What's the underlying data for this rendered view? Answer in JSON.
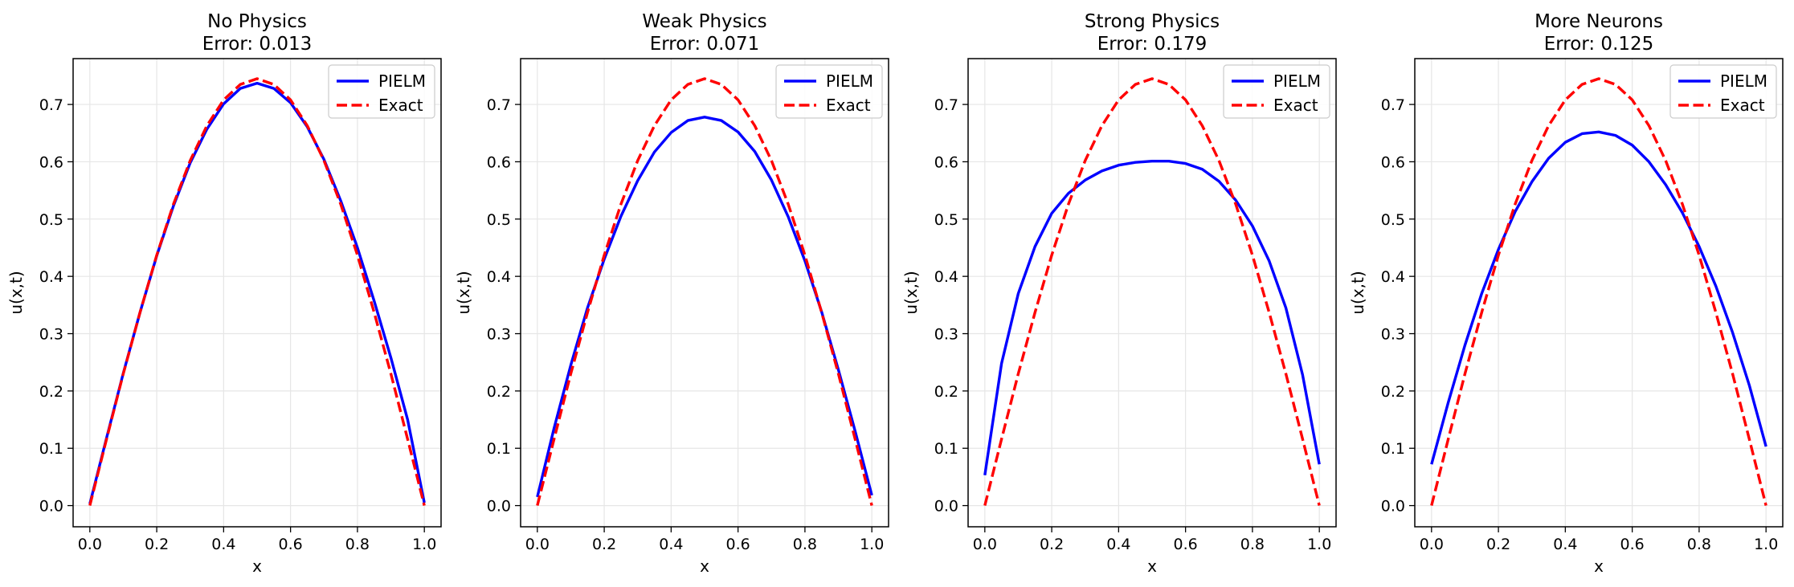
{
  "colors": {
    "pielm": "#0000ff",
    "exact": "#ff0000",
    "grid": "#e6e6e6",
    "axes": "#000000"
  },
  "chart_data": [
    {
      "type": "line",
      "title": "No Physics",
      "subtitle": "Error: 0.013",
      "xlabel": "x",
      "ylabel": "u(x,t)",
      "xlim": [
        -0.05,
        1.05
      ],
      "ylim": [
        -0.037,
        0.78
      ],
      "xticks": [
        0.0,
        0.2,
        0.4,
        0.6,
        0.8,
        1.0
      ],
      "xtick_labels": [
        "0.0",
        "0.2",
        "0.4",
        "0.6",
        "0.8",
        "1.0"
      ],
      "yticks": [
        0.0,
        0.1,
        0.2,
        0.3,
        0.4,
        0.5,
        0.6,
        0.7
      ],
      "ytick_labels": [
        "0.0",
        "0.1",
        "0.2",
        "0.3",
        "0.4",
        "0.5",
        "0.6",
        "0.7"
      ],
      "grid": true,
      "legend": "top-right",
      "series": [
        {
          "name": "PIELM",
          "style": "solid",
          "color": "#0000ff",
          "x": [
            0.0,
            0.05,
            0.1,
            0.15,
            0.2,
            0.25,
            0.3,
            0.35,
            0.4,
            0.45,
            0.5,
            0.55,
            0.6,
            0.65,
            0.7,
            0.75,
            0.8,
            0.85,
            0.9,
            0.95,
            1.0
          ],
          "y": [
            0.003,
            0.118,
            0.231,
            0.337,
            0.436,
            0.523,
            0.598,
            0.657,
            0.701,
            0.728,
            0.737,
            0.728,
            0.703,
            0.661,
            0.604,
            0.532,
            0.45,
            0.357,
            0.258,
            0.15,
            0.005
          ]
        },
        {
          "name": "Exact",
          "style": "dashed",
          "color": "#ff0000",
          "x": [
            0.0,
            0.05,
            0.1,
            0.15,
            0.2,
            0.25,
            0.3,
            0.35,
            0.4,
            0.45,
            0.5,
            0.55,
            0.6,
            0.65,
            0.7,
            0.75,
            0.8,
            0.85,
            0.9,
            0.95,
            1.0
          ],
          "y": [
            0.0,
            0.116,
            0.23,
            0.337,
            0.437,
            0.526,
            0.602,
            0.663,
            0.708,
            0.735,
            0.745,
            0.735,
            0.708,
            0.663,
            0.602,
            0.526,
            0.437,
            0.337,
            0.23,
            0.116,
            0.0
          ]
        }
      ]
    },
    {
      "type": "line",
      "title": "Weak Physics",
      "subtitle": "Error: 0.071",
      "xlabel": "x",
      "ylabel": "u(x,t)",
      "xlim": [
        -0.05,
        1.05
      ],
      "ylim": [
        -0.037,
        0.78
      ],
      "xticks": [
        0.0,
        0.2,
        0.4,
        0.6,
        0.8,
        1.0
      ],
      "xtick_labels": [
        "0.0",
        "0.2",
        "0.4",
        "0.6",
        "0.8",
        "1.0"
      ],
      "yticks": [
        0.0,
        0.1,
        0.2,
        0.3,
        0.4,
        0.5,
        0.6,
        0.7
      ],
      "ytick_labels": [
        "0.0",
        "0.1",
        "0.2",
        "0.3",
        "0.4",
        "0.5",
        "0.6",
        "0.7"
      ],
      "grid": true,
      "legend": "top-right",
      "series": [
        {
          "name": "PIELM",
          "style": "solid",
          "color": "#0000ff",
          "x": [
            0.0,
            0.05,
            0.1,
            0.15,
            0.2,
            0.25,
            0.3,
            0.35,
            0.4,
            0.45,
            0.5,
            0.55,
            0.6,
            0.65,
            0.7,
            0.75,
            0.8,
            0.85,
            0.9,
            0.95,
            1.0
          ],
          "y": [
            0.015,
            0.135,
            0.245,
            0.345,
            0.43,
            0.505,
            0.567,
            0.617,
            0.651,
            0.672,
            0.678,
            0.672,
            0.652,
            0.618,
            0.568,
            0.504,
            0.427,
            0.338,
            0.237,
            0.13,
            0.018
          ]
        },
        {
          "name": "Exact",
          "style": "dashed",
          "color": "#ff0000",
          "x": [
            0.0,
            0.05,
            0.1,
            0.15,
            0.2,
            0.25,
            0.3,
            0.35,
            0.4,
            0.45,
            0.5,
            0.55,
            0.6,
            0.65,
            0.7,
            0.75,
            0.8,
            0.85,
            0.9,
            0.95,
            1.0
          ],
          "y": [
            0.0,
            0.116,
            0.23,
            0.337,
            0.437,
            0.526,
            0.602,
            0.663,
            0.708,
            0.735,
            0.745,
            0.735,
            0.708,
            0.663,
            0.602,
            0.526,
            0.437,
            0.337,
            0.23,
            0.116,
            0.0
          ]
        }
      ]
    },
    {
      "type": "line",
      "title": "Strong Physics",
      "subtitle": "Error: 0.179",
      "xlabel": "x",
      "ylabel": "u(x,t)",
      "xlim": [
        -0.05,
        1.05
      ],
      "ylim": [
        -0.037,
        0.78
      ],
      "xticks": [
        0.0,
        0.2,
        0.4,
        0.6,
        0.8,
        1.0
      ],
      "xtick_labels": [
        "0.0",
        "0.2",
        "0.4",
        "0.6",
        "0.8",
        "1.0"
      ],
      "yticks": [
        0.0,
        0.1,
        0.2,
        0.3,
        0.4,
        0.5,
        0.6,
        0.7
      ],
      "ytick_labels": [
        "0.0",
        "0.1",
        "0.2",
        "0.3",
        "0.4",
        "0.5",
        "0.6",
        "0.7"
      ],
      "grid": true,
      "legend": "top-right",
      "series": [
        {
          "name": "PIELM",
          "style": "solid",
          "color": "#0000ff",
          "x": [
            0.0,
            0.05,
            0.1,
            0.15,
            0.2,
            0.25,
            0.3,
            0.35,
            0.4,
            0.45,
            0.5,
            0.55,
            0.6,
            0.65,
            0.7,
            0.75,
            0.8,
            0.85,
            0.9,
            0.95,
            1.0
          ],
          "y": [
            0.053,
            0.248,
            0.37,
            0.452,
            0.51,
            0.545,
            0.568,
            0.584,
            0.594,
            0.599,
            0.601,
            0.601,
            0.597,
            0.587,
            0.566,
            0.533,
            0.488,
            0.427,
            0.345,
            0.228,
            0.072
          ]
        },
        {
          "name": "Exact",
          "style": "dashed",
          "color": "#ff0000",
          "x": [
            0.0,
            0.05,
            0.1,
            0.15,
            0.2,
            0.25,
            0.3,
            0.35,
            0.4,
            0.45,
            0.5,
            0.55,
            0.6,
            0.65,
            0.7,
            0.75,
            0.8,
            0.85,
            0.9,
            0.95,
            1.0
          ],
          "y": [
            0.0,
            0.116,
            0.23,
            0.337,
            0.437,
            0.526,
            0.602,
            0.663,
            0.708,
            0.735,
            0.745,
            0.735,
            0.708,
            0.663,
            0.602,
            0.526,
            0.437,
            0.337,
            0.23,
            0.116,
            0.0
          ]
        }
      ]
    },
    {
      "type": "line",
      "title": "More Neurons",
      "subtitle": "Error: 0.125",
      "xlabel": "x",
      "ylabel": "u(x,t)",
      "xlim": [
        -0.05,
        1.05
      ],
      "ylim": [
        -0.037,
        0.78
      ],
      "xticks": [
        0.0,
        0.2,
        0.4,
        0.6,
        0.8,
        1.0
      ],
      "xtick_labels": [
        "0.0",
        "0.2",
        "0.4",
        "0.6",
        "0.8",
        "1.0"
      ],
      "yticks": [
        0.0,
        0.1,
        0.2,
        0.3,
        0.4,
        0.5,
        0.6,
        0.7
      ],
      "ytick_labels": [
        "0.0",
        "0.1",
        "0.2",
        "0.3",
        "0.4",
        "0.5",
        "0.6",
        "0.7"
      ],
      "grid": true,
      "legend": "top-right",
      "series": [
        {
          "name": "PIELM",
          "style": "solid",
          "color": "#0000ff",
          "x": [
            0.0,
            0.05,
            0.1,
            0.15,
            0.2,
            0.25,
            0.3,
            0.35,
            0.4,
            0.45,
            0.5,
            0.55,
            0.6,
            0.65,
            0.7,
            0.75,
            0.8,
            0.85,
            0.9,
            0.95,
            1.0
          ],
          "y": [
            0.072,
            0.18,
            0.28,
            0.37,
            0.447,
            0.513,
            0.565,
            0.606,
            0.634,
            0.649,
            0.652,
            0.646,
            0.629,
            0.6,
            0.56,
            0.511,
            0.452,
            0.383,
            0.302,
            0.21,
            0.103
          ]
        },
        {
          "name": "Exact",
          "style": "dashed",
          "color": "#ff0000",
          "x": [
            0.0,
            0.05,
            0.1,
            0.15,
            0.2,
            0.25,
            0.3,
            0.35,
            0.4,
            0.45,
            0.5,
            0.55,
            0.6,
            0.65,
            0.7,
            0.75,
            0.8,
            0.85,
            0.9,
            0.95,
            1.0
          ],
          "y": [
            0.0,
            0.116,
            0.23,
            0.337,
            0.437,
            0.526,
            0.602,
            0.663,
            0.708,
            0.735,
            0.745,
            0.735,
            0.708,
            0.663,
            0.602,
            0.526,
            0.437,
            0.337,
            0.23,
            0.116,
            0.0
          ]
        }
      ]
    }
  ]
}
